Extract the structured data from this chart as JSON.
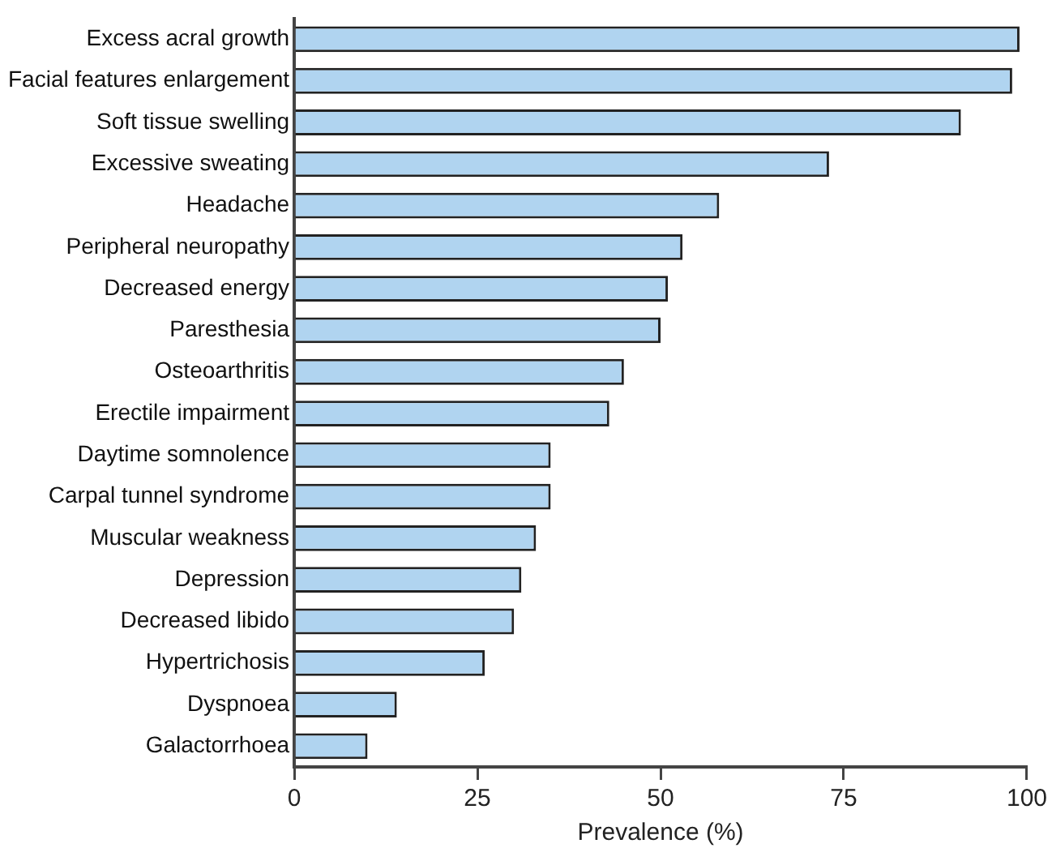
{
  "chart_data": {
    "type": "bar",
    "orientation": "horizontal",
    "xlabel": "Prevalence (%)",
    "categories": [
      "Excess acral growth",
      "Facial features enlargement",
      "Soft tissue swelling",
      "Excessive sweating",
      "Headache",
      "Peripheral neuropathy",
      "Decreased energy",
      "Paresthesia",
      "Osteoarthritis",
      "Erectile impairment",
      "Daytime somnolence",
      "Carpal tunnel syndrome",
      "Muscular weakness",
      "Depression",
      "Decreased libido",
      "Hypertrichosis",
      "Dyspnoea",
      "Galactorrhoea"
    ],
    "values": [
      99,
      98,
      91,
      73,
      58,
      53,
      51,
      50,
      45,
      43,
      35,
      35,
      33,
      31,
      30,
      26,
      14,
      10
    ],
    "color": "#b0d4f0",
    "xlim": [
      0,
      100
    ],
    "xticks": [
      0,
      25,
      50,
      75,
      100
    ],
    "grid": false,
    "legend": false
  }
}
